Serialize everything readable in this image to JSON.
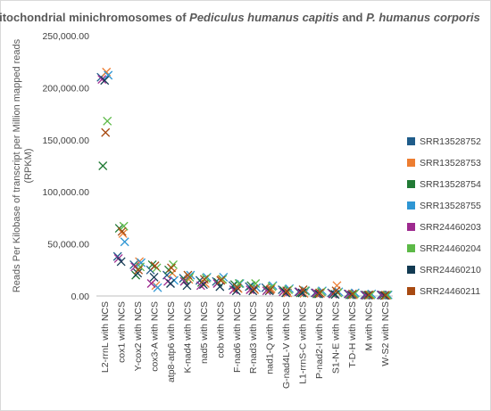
{
  "chart_data": {
    "type": "scatter",
    "title_segments": [
      {
        "text": "Mitochondrial minichromosomes of ",
        "italic": false
      },
      {
        "text": "Pediculus humanus capitis",
        "italic": true
      },
      {
        "text": " and ",
        "italic": false
      },
      {
        "text": "P. humanus corporis",
        "italic": true
      }
    ],
    "ylabel_lines": [
      "Reads Per Kilobase of transcript per Million mapped reads",
      "(RPKM)"
    ],
    "xlabel": "",
    "ylim": [
      0,
      250000
    ],
    "yticks": [
      0,
      50000,
      100000,
      150000,
      200000,
      250000
    ],
    "ytick_labels": [
      "0.00",
      "50,000.00",
      "100,000.00",
      "150,000.00",
      "200,000.00",
      "250,000.00"
    ],
    "grid": false,
    "marker": "x",
    "legend_position": "right",
    "categories": [
      "L2-rrnL with NCS",
      "cox1 with NCS",
      "Y-cox2 with NCS",
      "cox3-A with NCS",
      "atp8-atp6 with NCS",
      "K-nad4 with NCS",
      "nad5 with NCS",
      "cob with NCS",
      "F-nad6 with NCS",
      "R-nad3 with NCS",
      "nad1-Q with NCS",
      "G-nad4L-V with NCS",
      "L1-rrnS-C with NCS",
      "P-nad2-I with NCS",
      "S1-N-E with NCS",
      "T-D-H with NCS",
      "M with NCS",
      "W-S2 with NCS"
    ],
    "series": [
      {
        "name": "SRR13528752",
        "color": "#1f5c8a",
        "values": [
          210000,
          38000,
          30000,
          25000,
          20000,
          17000,
          15000,
          14000,
          10000,
          9000,
          8000,
          6000,
          4000,
          3000,
          3000,
          2000,
          1000,
          1000
        ]
      },
      {
        "name": "SRR13528753",
        "color": "#ed7d31",
        "values": [
          215000,
          60000,
          33000,
          10000,
          22000,
          16000,
          12000,
          16000,
          7000,
          6000,
          7000,
          3000,
          2500,
          2500,
          10000,
          1000,
          1000,
          500
        ]
      },
      {
        "name": "SRR13528754",
        "color": "#217a35",
        "values": [
          125000,
          65000,
          20000,
          30000,
          25000,
          15000,
          13000,
          13000,
          11000,
          10000,
          6000,
          5000,
          3000,
          2000,
          2000,
          1000,
          800,
          800
        ]
      },
      {
        "name": "SRR13528755",
        "color": "#2e96d4",
        "values": [
          212000,
          52000,
          32000,
          8000,
          15000,
          20000,
          18000,
          18000,
          12000,
          8000,
          10000,
          7000,
          5000,
          5000,
          4000,
          3000,
          2000,
          1000
        ]
      },
      {
        "name": "SRR24460203",
        "color": "#9e2a8f",
        "values": [
          208000,
          36000,
          28000,
          12000,
          14000,
          14000,
          10000,
          12000,
          6000,
          6000,
          5000,
          4000,
          4000,
          3000,
          2000,
          2000,
          800,
          1000
        ]
      },
      {
        "name": "SRR24460204",
        "color": "#5cb947",
        "values": [
          168000,
          67000,
          28000,
          27000,
          30000,
          18000,
          17000,
          16000,
          12000,
          12000,
          9000,
          6000,
          5000,
          4000,
          3000,
          2000,
          1000,
          1000
        ]
      },
      {
        "name": "SRR24460210",
        "color": "#123a52",
        "values": [
          207000,
          33000,
          22000,
          18000,
          12000,
          10000,
          11000,
          9000,
          5000,
          5000,
          5000,
          3000,
          3000,
          2000,
          1500,
          1000,
          800,
          500
        ]
      },
      {
        "name": "SRR24460211",
        "color": "#a84a12",
        "values": [
          157000,
          62000,
          25000,
          29000,
          27000,
          20000,
          16000,
          15000,
          8000,
          7000,
          6000,
          5000,
          6000,
          3000,
          5000,
          2000,
          1000,
          800
        ]
      }
    ]
  }
}
